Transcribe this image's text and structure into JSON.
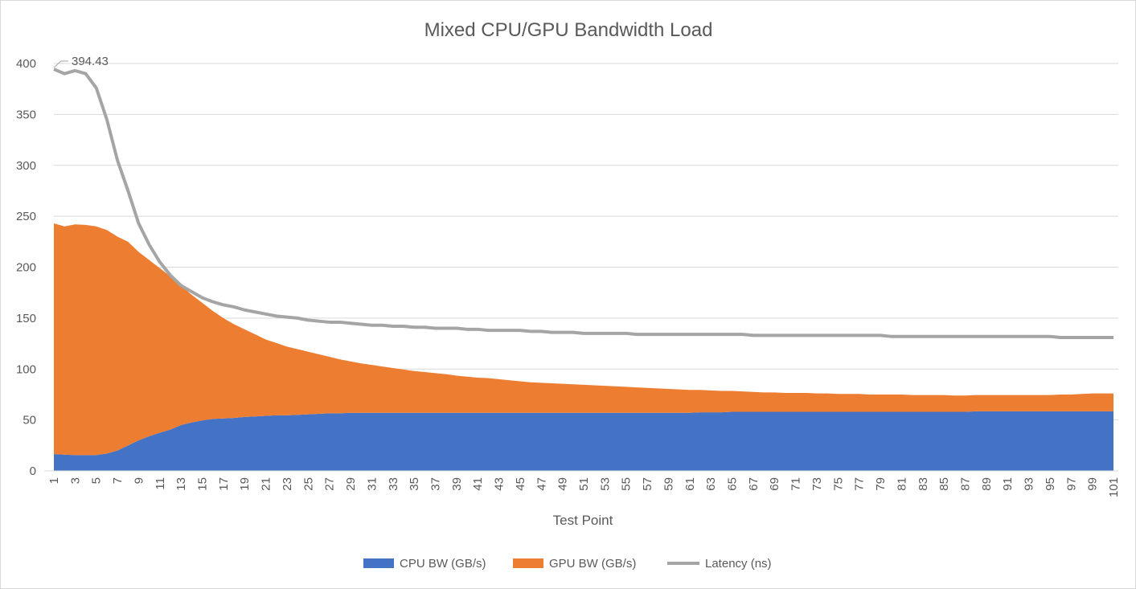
{
  "chart_data": {
    "type": "area",
    "title": "Mixed CPU/GPU Bandwidth Load",
    "xlabel": "Test Point",
    "ylabel": "",
    "ylim": [
      0,
      400
    ],
    "y_ticks": [
      0,
      50,
      100,
      150,
      200,
      250,
      300,
      350,
      400
    ],
    "x_tick_labels": [
      "1",
      "3",
      "5",
      "7",
      "9",
      "11",
      "13",
      "15",
      "17",
      "19",
      "21",
      "23",
      "25",
      "27",
      "29",
      "31",
      "33",
      "35",
      "37",
      "39",
      "41",
      "43",
      "45",
      "47",
      "49",
      "51",
      "53",
      "55",
      "57",
      "59",
      "61",
      "63",
      "65",
      "67",
      "69",
      "71",
      "73",
      "75",
      "77",
      "79",
      "81",
      "83",
      "85",
      "87",
      "89",
      "91",
      "93",
      "95",
      "97",
      "99",
      "101"
    ],
    "grid": "horizontal",
    "legend_position": "bottom",
    "stacked": true,
    "series": [
      {
        "name": "CPU BW (GB/s)",
        "kind": "stacked-area",
        "color": "#4472c4",
        "values": [
          16.5,
          16.0,
          15.5,
          15.5,
          15.5,
          17.0,
          20.0,
          25.0,
          30.0,
          34.0,
          37.5,
          40.5,
          45.0,
          47.5,
          49.5,
          51.0,
          51.5,
          52.0,
          53.0,
          53.5,
          54.0,
          54.5,
          54.5,
          55.0,
          55.5,
          56.0,
          56.5,
          56.5,
          57.0,
          57.0,
          57.0,
          57.0,
          57.0,
          57.0,
          57.0,
          57.0,
          57.0,
          57.0,
          57.0,
          57.0,
          57.0,
          57.0,
          57.0,
          57.0,
          57.0,
          57.0,
          57.0,
          57.0,
          57.0,
          57.0,
          57.0,
          57.0,
          57.0,
          57.0,
          57.0,
          57.0,
          57.0,
          57.0,
          57.0,
          57.0,
          57.0,
          57.5,
          57.5,
          57.5,
          58.0,
          58.0,
          58.0,
          58.0,
          58.0,
          58.0,
          58.0,
          58.0,
          58.0,
          58.0,
          58.0,
          58.0,
          58.0,
          58.0,
          58.0,
          58.0,
          58.0,
          58.0,
          58.0,
          58.0,
          58.0,
          58.0,
          58.0,
          58.5,
          58.5,
          58.5,
          58.5,
          58.5,
          58.5,
          58.5,
          58.5,
          58.5,
          58.5,
          58.5,
          58.5,
          58.5,
          58.5
        ]
      },
      {
        "name": "GPU BW (GB/s)",
        "kind": "stacked-area",
        "color": "#ed7d31",
        "values": [
          226.5,
          224.0,
          226.5,
          226.0,
          224.5,
          219.5,
          210.0,
          200.0,
          185.0,
          173.0,
          161.5,
          150.5,
          137.0,
          125.5,
          115.5,
          106.0,
          98.5,
          92.0,
          86.0,
          80.5,
          75.0,
          71.0,
          67.5,
          64.5,
          61.5,
          58.5,
          55.5,
          53.0,
          50.5,
          48.5,
          47.0,
          45.5,
          44.0,
          42.5,
          41.0,
          40.0,
          39.0,
          38.0,
          36.5,
          35.5,
          34.5,
          34.0,
          33.0,
          32.0,
          31.0,
          30.0,
          29.5,
          29.0,
          28.5,
          28.0,
          27.5,
          27.0,
          26.5,
          26.0,
          25.5,
          25.0,
          24.5,
          24.0,
          23.5,
          23.0,
          22.5,
          22.0,
          21.5,
          21.0,
          20.5,
          20.0,
          19.5,
          19.0,
          19.0,
          18.5,
          18.5,
          18.5,
          18.0,
          18.0,
          17.5,
          17.5,
          17.5,
          17.0,
          17.0,
          17.0,
          17.0,
          16.5,
          16.5,
          16.5,
          16.5,
          16.0,
          16.0,
          16.0,
          16.0,
          16.0,
          16.0,
          16.0,
          16.0,
          16.0,
          16.0,
          16.5,
          16.5,
          17.0,
          17.5,
          17.5,
          17.5
        ]
      },
      {
        "name": "Latency (ns)",
        "kind": "line",
        "color": "#a5a5a5",
        "values": [
          394.43,
          390,
          393,
          390,
          376,
          345,
          305,
          275,
          243,
          222,
          205,
          192,
          182,
          176,
          170,
          166,
          163,
          161,
          158,
          156,
          154,
          152,
          151,
          150,
          148,
          147,
          146,
          146,
          145,
          144,
          143,
          143,
          142,
          142,
          141,
          141,
          140,
          140,
          140,
          139,
          139,
          138,
          138,
          138,
          138,
          137,
          137,
          136,
          136,
          136,
          135,
          135,
          135,
          135,
          135,
          134,
          134,
          134,
          134,
          134,
          134,
          134,
          134,
          134,
          134,
          134,
          133,
          133,
          133,
          133,
          133,
          133,
          133,
          133,
          133,
          133,
          133,
          133,
          133,
          132,
          132,
          132,
          132,
          132,
          132,
          132,
          132,
          132,
          132,
          132,
          132,
          132,
          132,
          132,
          132,
          131,
          131,
          131,
          131,
          131,
          131
        ]
      }
    ],
    "annotations": [
      {
        "text": "394.43",
        "series": "Latency (ns)",
        "x_index": 1
      }
    ]
  }
}
